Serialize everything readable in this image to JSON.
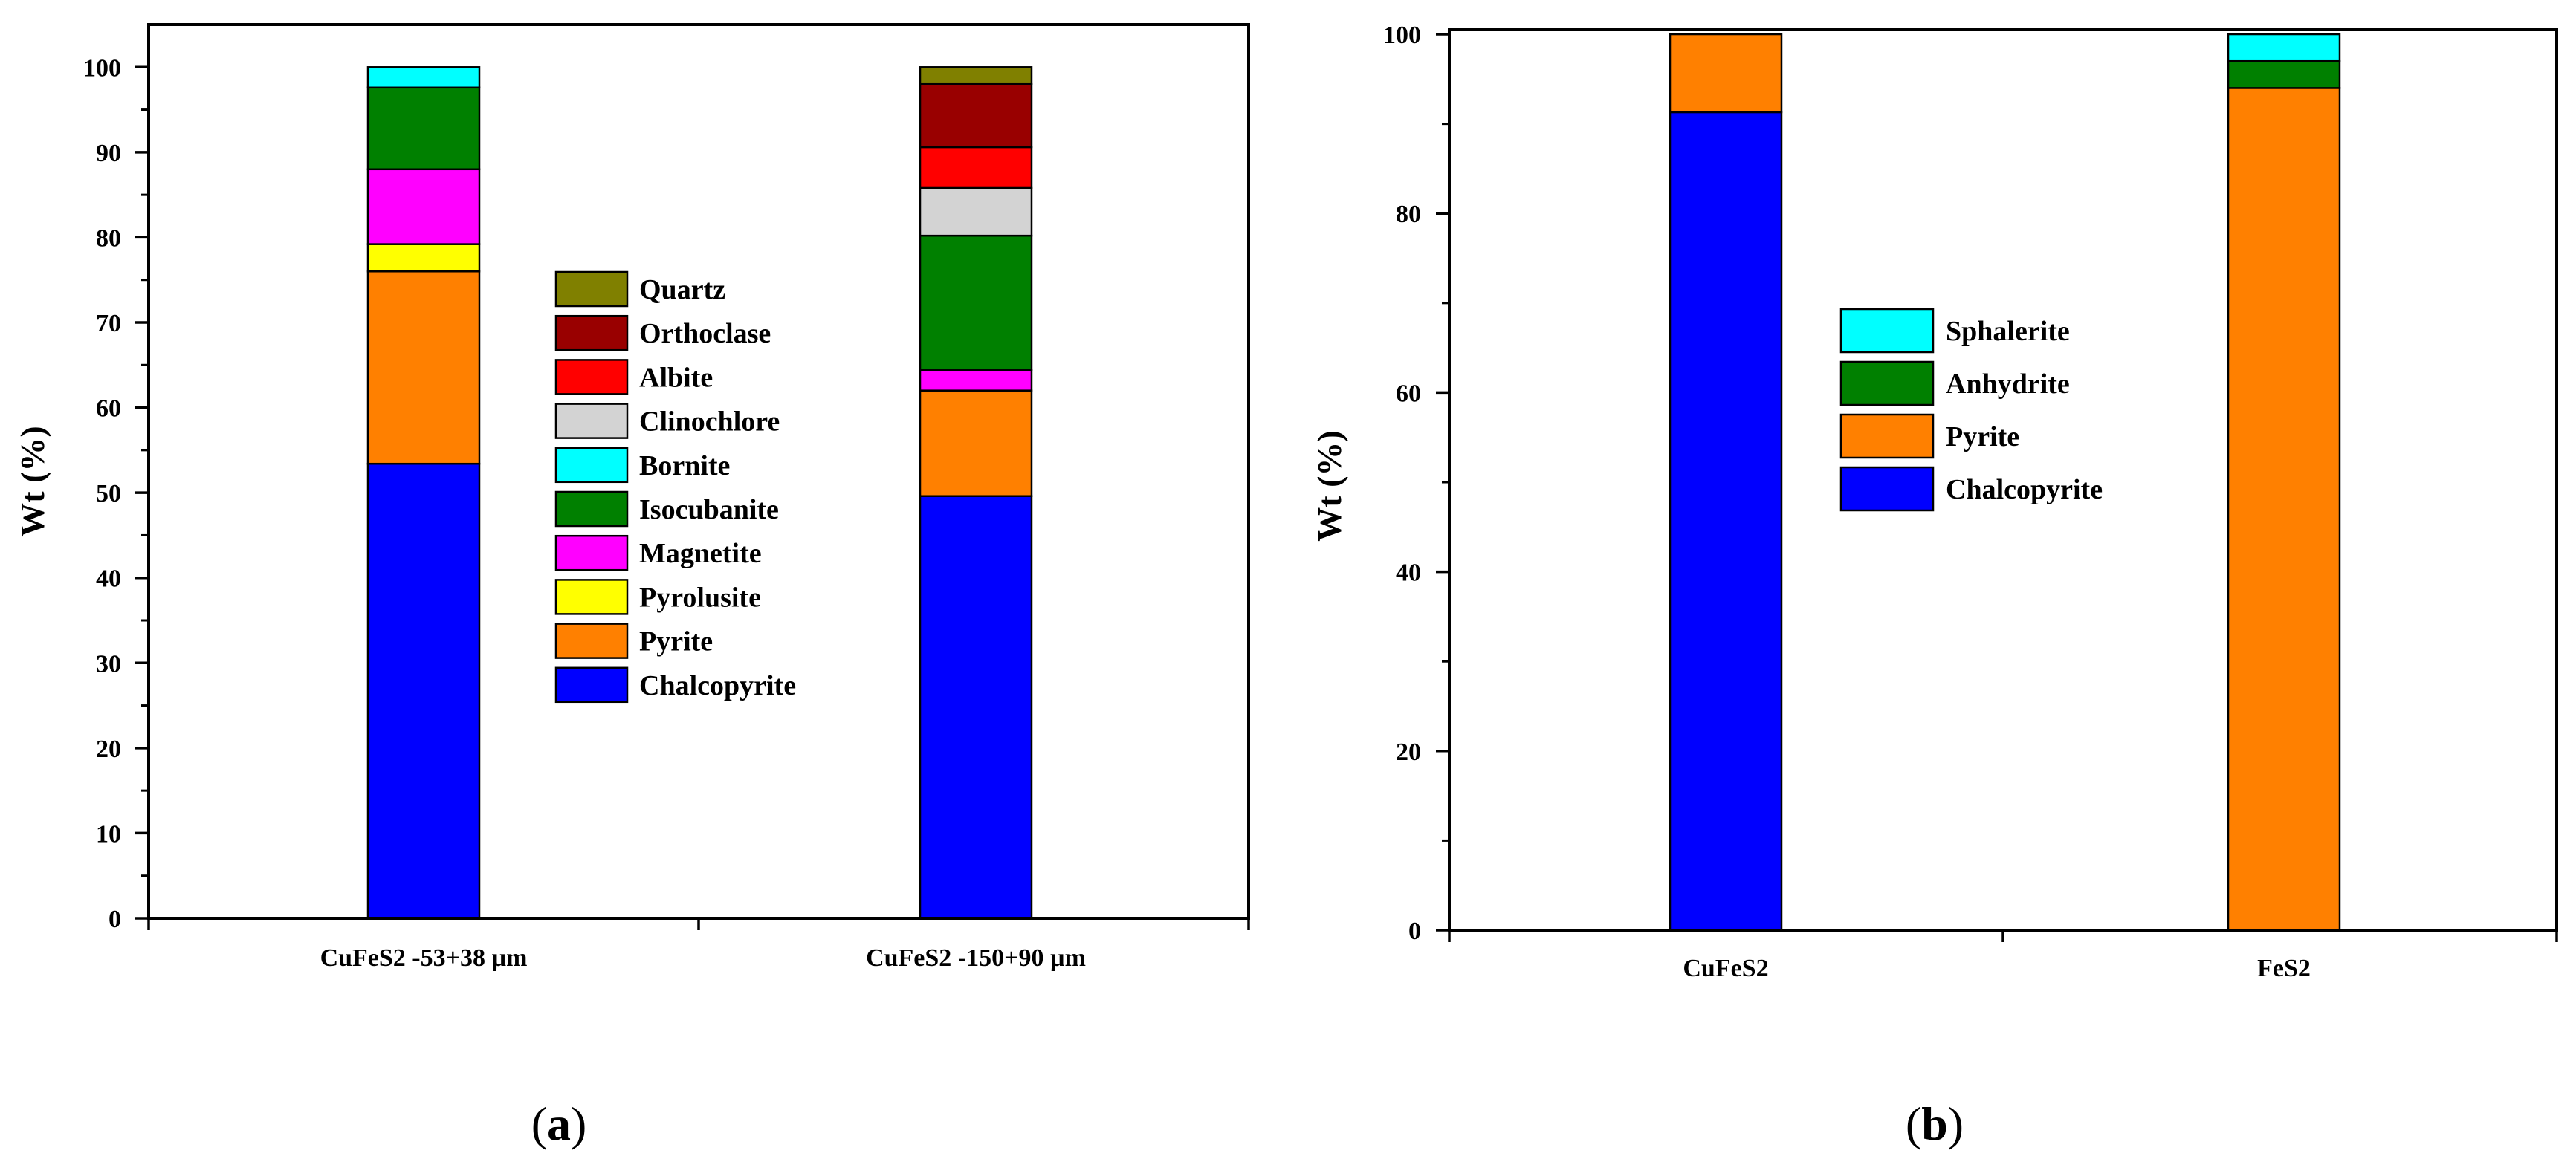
{
  "chart_data": [
    {
      "panel": "a",
      "type": "bar",
      "stacked": true,
      "ylabel": "Wt (%)",
      "xlabel": "",
      "ylim": [
        0,
        105
      ],
      "yticks": [
        0,
        10,
        20,
        30,
        40,
        50,
        60,
        70,
        80,
        90,
        100
      ],
      "categories": [
        "CuFeS2 -53+38 µm",
        "CuFeS2 -150+90 µm"
      ],
      "series": [
        {
          "name": "Chalcopyrite",
          "color": "#0000FF",
          "values": [
            53.4,
            49.6
          ]
        },
        {
          "name": "Pyrite",
          "color": "#FF8000",
          "values": [
            22.6,
            12.4
          ]
        },
        {
          "name": "Pyrolusite",
          "color": "#FFFF00",
          "values": [
            3.2,
            0
          ]
        },
        {
          "name": "Magnetite",
          "color": "#FF00FF",
          "values": [
            8.8,
            2.4
          ]
        },
        {
          "name": "Isocubanite",
          "color": "#008000",
          "values": [
            9.6,
            15.8
          ]
        },
        {
          "name": "Bornite",
          "color": "#00FFFF",
          "values": [
            2.4,
            0
          ]
        },
        {
          "name": "Clinochlore",
          "color": "#D3D3D3",
          "values": [
            0,
            5.6
          ]
        },
        {
          "name": "Albite",
          "color": "#FF0000",
          "values": [
            0,
            4.8
          ]
        },
        {
          "name": "Orthoclase",
          "color": "#990000",
          "values": [
            0,
            7.4
          ]
        },
        {
          "name": "Quartz",
          "color": "#808000",
          "values": [
            0,
            2.0
          ]
        }
      ],
      "legend_order": [
        "Quartz",
        "Orthoclase",
        "Albite",
        "Clinochlore",
        "Bornite",
        "Isocubanite",
        "Magnetite",
        "Pyrolusite",
        "Pyrite",
        "Chalcopyrite"
      ],
      "legend_position": "center"
    },
    {
      "panel": "b",
      "type": "bar",
      "stacked": true,
      "ylabel": "Wt (%)",
      "xlabel": "",
      "ylim": [
        0,
        100.5
      ],
      "yticks": [
        0,
        20,
        40,
        60,
        80,
        100
      ],
      "categories": [
        "CuFeS2",
        "FeS2"
      ],
      "series": [
        {
          "name": "Chalcopyrite",
          "color": "#0000FF",
          "values": [
            91.3,
            0
          ]
        },
        {
          "name": "Pyrite",
          "color": "#FF8000",
          "values": [
            8.7,
            94.0
          ]
        },
        {
          "name": "Anhydrite",
          "color": "#008000",
          "values": [
            0,
            3.0
          ]
        },
        {
          "name": "Sphalerite",
          "color": "#00FFFF",
          "values": [
            0,
            3.0
          ]
        }
      ],
      "legend_order": [
        "Sphalerite",
        "Anhydrite",
        "Pyrite",
        "Chalcopyrite"
      ],
      "legend_position": "center"
    }
  ],
  "panel_labels": [
    {
      "open": "(",
      "letter": "a",
      "close": ")"
    },
    {
      "open": "(",
      "letter": "b",
      "close": ")"
    }
  ]
}
